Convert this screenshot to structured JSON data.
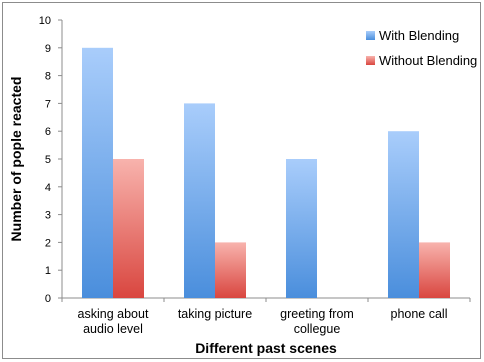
{
  "chart_data": {
    "type": "bar",
    "categories": [
      [
        "asking about",
        "audio level"
      ],
      [
        "taking picture"
      ],
      [
        "greeting from",
        "collegue"
      ],
      [
        "phone call"
      ]
    ],
    "series": [
      {
        "name": "With Blending",
        "values": [
          9,
          7,
          5,
          6
        ]
      },
      {
        "name": "Without Blending",
        "values": [
          5,
          2,
          0,
          2
        ]
      }
    ],
    "title": "",
    "xlabel": "Different past scenes",
    "ylabel": "Number of pople reacted",
    "ylim": [
      0,
      10
    ],
    "yticks": [
      0,
      1,
      2,
      3,
      4,
      5,
      6,
      7,
      8,
      9,
      10
    ],
    "grid": false,
    "legend_position": "top-right",
    "colors": {
      "With Blending": {
        "top": "#a9cdfb",
        "bottom": "#4a8edc"
      },
      "Without Blending": {
        "top": "#f8b3ad",
        "bottom": "#d9463f"
      },
      "axis": "#8c8c8c"
    }
  }
}
